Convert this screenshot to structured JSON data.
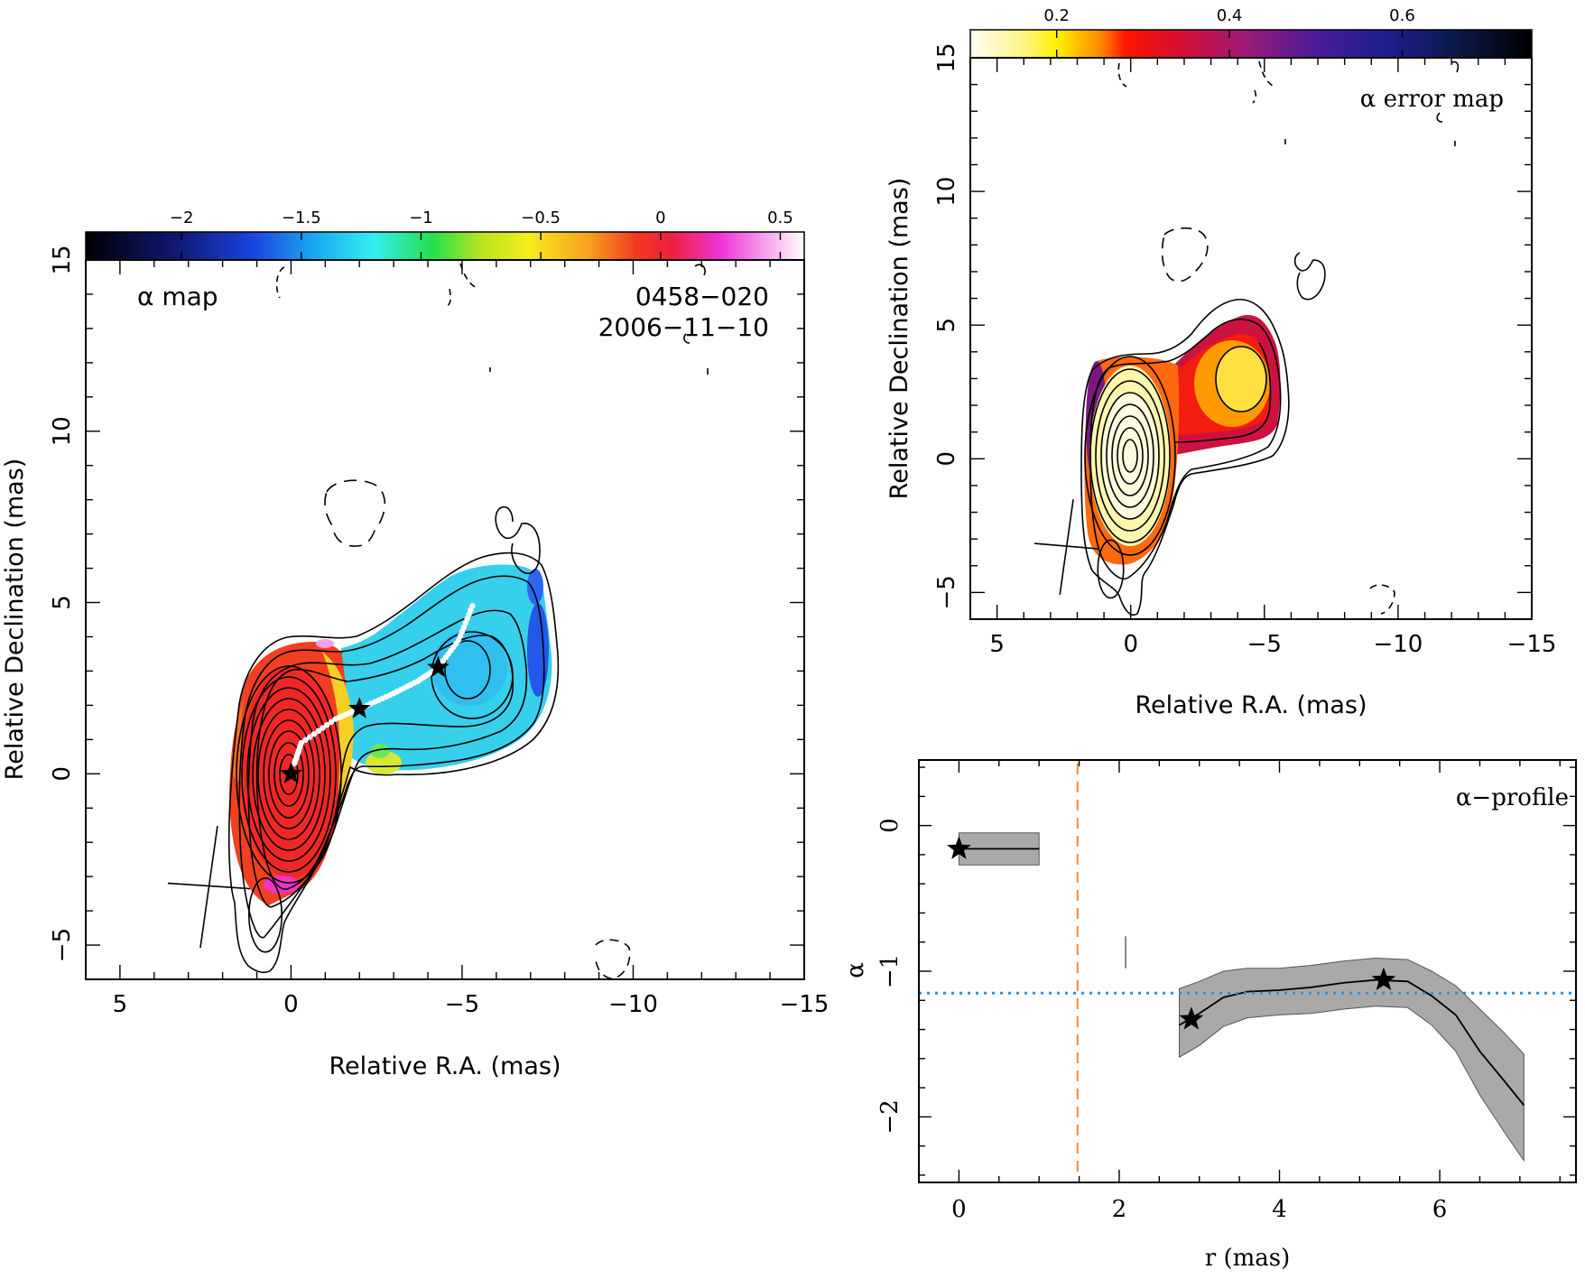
{
  "chart_data": [
    {
      "id": "alpha_map",
      "type": "heatmap",
      "panel_label": "α map",
      "source": "0458−020",
      "date": "2006−11−10",
      "xlabel": "Relative R.A. (mas)",
      "ylabel": "Relative Declination (mas)",
      "xlim": [
        6,
        -15
      ],
      "ylim": [
        -6,
        15
      ],
      "xticks": [
        {
          "v": 5,
          "l": "5"
        },
        {
          "v": 0,
          "l": "0"
        },
        {
          "v": -5,
          "l": "−5"
        },
        {
          "v": -10,
          "l": "−10"
        },
        {
          "v": -15,
          "l": "−15"
        }
      ],
      "yticks": [
        {
          "v": -5,
          "l": "−5"
        },
        {
          "v": 0,
          "l": "0"
        },
        {
          "v": 5,
          "l": "5"
        },
        {
          "v": 10,
          "l": "10"
        },
        {
          "v": 15,
          "l": "15"
        }
      ],
      "colorbar": {
        "range": [
          -2.4,
          0.6
        ],
        "ticks": [
          {
            "v": -2,
            "l": "−2"
          },
          {
            "v": -1.5,
            "l": "−1.5"
          },
          {
            "v": -1,
            "l": "−1"
          },
          {
            "v": -0.5,
            "l": "−0.5"
          },
          {
            "v": 0,
            "l": "0"
          },
          {
            "v": 0.5,
            "l": "0.5"
          }
        ],
        "stops": [
          {
            "v": -2.4,
            "c": "#000000"
          },
          {
            "v": -2.0,
            "c": "#101a7a"
          },
          {
            "v": -1.7,
            "c": "#1a44e0"
          },
          {
            "v": -1.45,
            "c": "#19a6f0"
          },
          {
            "v": -1.2,
            "c": "#33eef0"
          },
          {
            "v": -0.95,
            "c": "#25e04a"
          },
          {
            "v": -0.75,
            "c": "#b8e422"
          },
          {
            "v": -0.55,
            "c": "#f6ec1e"
          },
          {
            "v": -0.3,
            "c": "#f8a020"
          },
          {
            "v": -0.1,
            "c": "#f1391e"
          },
          {
            "v": 0.05,
            "c": "#ee2040"
          },
          {
            "v": 0.25,
            "c": "#ee33d8"
          },
          {
            "v": 0.6,
            "c": "#ffffff"
          }
        ]
      },
      "stars": [
        {
          "x": 0.0,
          "y": 0.0
        },
        {
          "x": -2.0,
          "y": 1.9
        },
        {
          "x": -4.3,
          "y": 3.1
        }
      ],
      "ridge_line": [
        {
          "x": -0.1,
          "y": 0.3
        },
        {
          "x": -0.3,
          "y": 0.9
        },
        {
          "x": -1.3,
          "y": 1.6
        },
        {
          "x": -2.0,
          "y": 1.9
        },
        {
          "x": -2.9,
          "y": 2.3
        },
        {
          "x": -3.7,
          "y": 2.7
        },
        {
          "x": -4.3,
          "y": 3.1
        },
        {
          "x": -4.9,
          "y": 3.9
        },
        {
          "x": -5.3,
          "y": 4.9
        }
      ],
      "beam": {
        "major": 3.6,
        "minor": 1.5,
        "pa_deg": 8
      }
    },
    {
      "id": "alpha_error_map",
      "type": "heatmap",
      "panel_label": "α error map",
      "xlabel": "Relative R.A. (mas)",
      "ylabel": "Relative Declination (mas)",
      "xlim": [
        6,
        -15
      ],
      "ylim": [
        -6,
        15
      ],
      "xticks": [
        {
          "v": 5,
          "l": "5"
        },
        {
          "v": 0,
          "l": "0"
        },
        {
          "v": -5,
          "l": "−5"
        },
        {
          "v": -10,
          "l": "−10"
        },
        {
          "v": -15,
          "l": "−15"
        }
      ],
      "yticks": [
        {
          "v": -5,
          "l": "−5"
        },
        {
          "v": 0,
          "l": "0"
        },
        {
          "v": 5,
          "l": "5"
        },
        {
          "v": 10,
          "l": "10"
        },
        {
          "v": 15,
          "l": "15"
        }
      ],
      "colorbar": {
        "range": [
          0.1,
          0.75
        ],
        "ticks": [
          {
            "v": 0.2,
            "l": "0.2"
          },
          {
            "v": 0.4,
            "l": "0.4"
          },
          {
            "v": 0.6,
            "l": "0.6"
          }
        ],
        "stops": [
          {
            "v": 0.1,
            "c": "#fffff2"
          },
          {
            "v": 0.16,
            "c": "#fff48a"
          },
          {
            "v": 0.2,
            "c": "#fff200"
          },
          {
            "v": 0.25,
            "c": "#ff8a00"
          },
          {
            "v": 0.28,
            "c": "#ff1500"
          },
          {
            "v": 0.34,
            "c": "#d80e30"
          },
          {
            "v": 0.42,
            "c": "#9b1a78"
          },
          {
            "v": 0.5,
            "c": "#4a1c98"
          },
          {
            "v": 0.58,
            "c": "#1e1e92"
          },
          {
            "v": 0.66,
            "c": "#0a1a4a"
          },
          {
            "v": 0.75,
            "c": "#000000"
          }
        ]
      },
      "beam": {
        "major": 3.6,
        "minor": 1.5,
        "pa_deg": 8
      }
    },
    {
      "id": "alpha_profile",
      "type": "line",
      "panel_label": "α−profile",
      "xlabel": "r (mas)",
      "ylabel": "α",
      "xlim": [
        -0.5,
        7.7
      ],
      "ylim": [
        -2.45,
        0.45
      ],
      "xticks": [
        {
          "v": 0,
          "l": "0"
        },
        {
          "v": 2,
          "l": "2"
        },
        {
          "v": 4,
          "l": "4"
        },
        {
          "v": 6,
          "l": "6"
        }
      ],
      "yticks": [
        {
          "v": 0,
          "l": "0"
        },
        {
          "v": -1,
          "l": "−1"
        },
        {
          "v": -2,
          "l": "−2"
        }
      ],
      "series": [
        {
          "x": [
            0,
            1.0
          ],
          "y": [
            -0.16,
            -0.16
          ],
          "y_lower": [
            -0.27,
            -0.27
          ],
          "y_upper": [
            -0.05,
            -0.05
          ]
        },
        {
          "x": [
            2.75,
            3.0,
            3.3,
            3.6,
            4.0,
            4.4,
            4.8,
            5.2,
            5.6,
            5.9,
            6.2,
            6.5,
            6.8,
            7.05
          ],
          "y": [
            -1.37,
            -1.29,
            -1.18,
            -1.14,
            -1.13,
            -1.11,
            -1.08,
            -1.06,
            -1.07,
            -1.17,
            -1.3,
            -1.55,
            -1.75,
            -1.92
          ],
          "y_lower": [
            -1.59,
            -1.51,
            -1.38,
            -1.32,
            -1.3,
            -1.29,
            -1.26,
            -1.24,
            -1.25,
            -1.37,
            -1.55,
            -1.85,
            -2.1,
            -2.3
          ],
          "y_upper": [
            -1.12,
            -1.07,
            -1.0,
            -0.98,
            -0.98,
            -0.96,
            -0.93,
            -0.91,
            -0.92,
            -1.0,
            -1.1,
            -1.26,
            -1.42,
            -1.57
          ]
        }
      ],
      "stars": [
        {
          "x": 0.0,
          "y": -0.16
        },
        {
          "x": 2.9,
          "y": -1.33
        },
        {
          "x": 5.3,
          "y": -1.06
        }
      ],
      "vertical_marker": {
        "x": 2.08,
        "y": [
          -0.76,
          -0.98
        ]
      },
      "reference_line_y": -1.15,
      "dashed_vline_x": 1.48,
      "colors": {
        "band": "#a9a9a9",
        "reference_line": "#2a8fe0",
        "dashed_vline": "#f08c30"
      }
    }
  ]
}
